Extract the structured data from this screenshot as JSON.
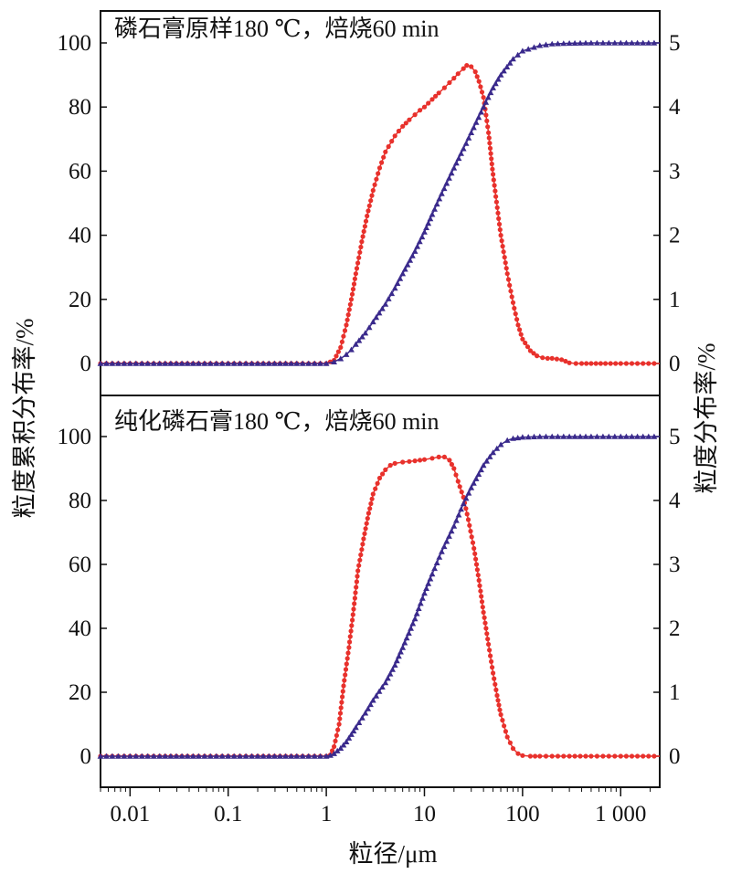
{
  "chart_data": [
    {
      "type": "line",
      "title": "磷石膏原样180 ℃，焙烧60 min",
      "x_scale": "log",
      "xlim": [
        0.005,
        2500
      ],
      "ylim_left": [
        -10,
        110
      ],
      "ylim_right": [
        -0.5,
        5.5
      ],
      "left_ticks": [
        "0",
        "20",
        "40",
        "60",
        "80",
        "100"
      ],
      "right_ticks": [
        "0",
        "1",
        "2",
        "3",
        "4",
        "5"
      ],
      "series": [
        {
          "axis": "right",
          "color": "#e8312c",
          "marker": "circle",
          "x": [
            0.005,
            0.01,
            0.02,
            0.05,
            0.1,
            0.2,
            0.5,
            1,
            1.2,
            1.4,
            1.6,
            1.8,
            2,
            2.3,
            2.6,
            3,
            3.5,
            4,
            5,
            6,
            7,
            8,
            9,
            10,
            12,
            14,
            16,
            18,
            20,
            22,
            25,
            27,
            30,
            33,
            36,
            40,
            45,
            50,
            60,
            70,
            80,
            90,
            100,
            120,
            140,
            160,
            180,
            200,
            250,
            300,
            350,
            400,
            500,
            700,
            1000,
            2500
          ],
          "y": [
            0,
            0,
            0,
            0,
            0,
            0,
            0,
            0,
            0.05,
            0.25,
            0.6,
            1.0,
            1.4,
            1.9,
            2.3,
            2.7,
            3.05,
            3.3,
            3.55,
            3.7,
            3.8,
            3.88,
            3.95,
            4.0,
            4.12,
            4.22,
            4.3,
            4.38,
            4.45,
            4.52,
            4.6,
            4.65,
            4.63,
            4.55,
            4.4,
            4.15,
            3.6,
            2.95,
            2.0,
            1.4,
            0.95,
            0.6,
            0.38,
            0.2,
            0.12,
            0.09,
            0.08,
            0.08,
            0.06,
            0.01,
            0,
            0,
            0,
            0,
            0,
            0
          ]
        },
        {
          "axis": "left",
          "color": "#3a2a8c",
          "marker": "triangle",
          "x": [
            0.005,
            0.01,
            0.02,
            0.05,
            0.1,
            0.2,
            0.5,
            1,
            1.2,
            1.4,
            1.6,
            1.8,
            2,
            2.5,
            3,
            4,
            5,
            6,
            8,
            10,
            12,
            15,
            20,
            25,
            30,
            40,
            50,
            60,
            80,
            100,
            150,
            200,
            300,
            500,
            1000,
            2500
          ],
          "y": [
            0,
            0,
            0,
            0,
            0,
            0,
            0,
            0,
            0.5,
            1.5,
            2.8,
            4.3,
            6,
            9.5,
            13,
            18.5,
            23.5,
            28,
            35,
            41,
            46.5,
            53,
            61,
            67,
            72,
            80,
            86,
            90,
            95,
            97.5,
            99.2,
            99.7,
            99.9,
            100,
            100,
            100
          ]
        }
      ]
    },
    {
      "type": "line",
      "title": "纯化磷石膏180 ℃，焙烧60 min",
      "x_scale": "log",
      "xlim": [
        0.005,
        2500
      ],
      "ylim_left": [
        -10,
        110
      ],
      "ylim_right": [
        -0.5,
        5.5
      ],
      "left_ticks": [
        "0",
        "20",
        "40",
        "60",
        "80",
        "100"
      ],
      "right_ticks": [
        "0",
        "1",
        "2",
        "3",
        "4",
        "5"
      ],
      "xlabel": "粒径/μm",
      "x_ticks": [
        "0.01",
        "0.1",
        "1",
        "10",
        "100",
        "1 000"
      ],
      "series": [
        {
          "axis": "right",
          "color": "#e8312c",
          "marker": "circle",
          "x": [
            0.005,
            0.01,
            0.02,
            0.05,
            0.1,
            0.2,
            0.5,
            1,
            1.1,
            1.2,
            1.35,
            1.5,
            1.7,
            1.9,
            2.1,
            2.4,
            2.7,
            3,
            3.5,
            4,
            4.5,
            5,
            6,
            7,
            8,
            9,
            10,
            12,
            14,
            16,
            18,
            20,
            22,
            25,
            28,
            32,
            36,
            40,
            45,
            50,
            55,
            60,
            70,
            80,
            90,
            100,
            120,
            150,
            200,
            300,
            500,
            1000,
            2500
          ],
          "y": [
            0,
            0,
            0,
            0,
            0,
            0,
            0,
            0,
            0.02,
            0.15,
            0.5,
            1.1,
            1.7,
            2.3,
            2.9,
            3.4,
            3.8,
            4.1,
            4.35,
            4.48,
            4.55,
            4.58,
            4.6,
            4.61,
            4.62,
            4.63,
            4.64,
            4.66,
            4.68,
            4.68,
            4.63,
            4.5,
            4.3,
            4.05,
            3.7,
            3.25,
            2.75,
            2.25,
            1.75,
            1.3,
            0.95,
            0.65,
            0.3,
            0.12,
            0.04,
            0.01,
            0,
            0,
            0,
            0,
            0,
            0,
            0
          ]
        },
        {
          "axis": "left",
          "color": "#3a2a8c",
          "marker": "triangle",
          "x": [
            0.005,
            0.01,
            0.02,
            0.05,
            0.1,
            0.2,
            0.5,
            1,
            1.1,
            1.2,
            1.4,
            1.6,
            1.8,
            2,
            2.5,
            3,
            4,
            5,
            6,
            8,
            10,
            12,
            15,
            20,
            25,
            30,
            40,
            50,
            60,
            70,
            80,
            100,
            150,
            200,
            300,
            500,
            1000,
            2500
          ],
          "y": [
            0,
            0,
            0,
            0,
            0,
            0,
            0,
            0,
            0.3,
            0.8,
            2.5,
            4.5,
            6.8,
            9,
            13.5,
            17.5,
            23,
            28.5,
            34,
            43,
            51,
            57,
            64,
            72,
            79,
            84,
            91,
            95,
            97.5,
            98.8,
            99.4,
            99.8,
            100,
            100,
            100,
            100,
            100,
            100
          ]
        }
      ]
    }
  ],
  "shared_axes": {
    "left_label": "粒度累积分布率/%",
    "right_label": "粒度分布率/%"
  }
}
